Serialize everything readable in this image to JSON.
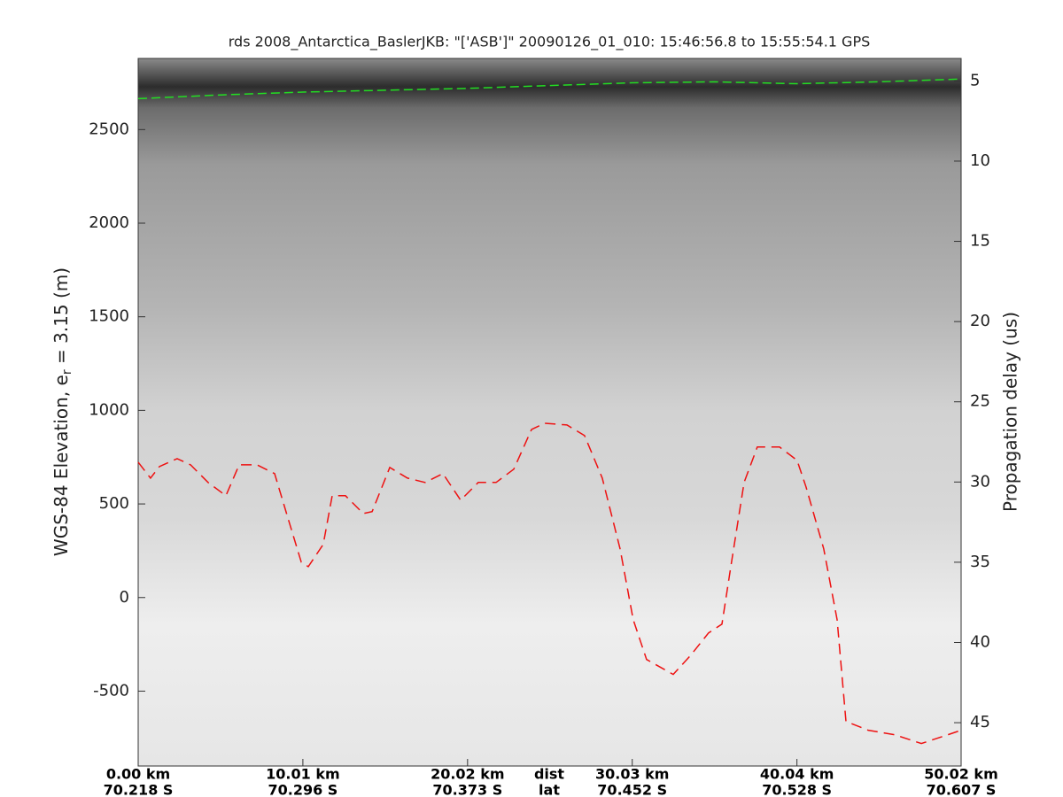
{
  "chart_data": {
    "type": "radargram",
    "title": "rds 2008_Antarctica_BaslerJKB: \"['ASB']\"  20090126_01_010: 15:46:56.8 to 15:55:54.1 GPS",
    "ylabel": [
      "WGS-84 Elevation, e",
      "r",
      " = 3.15 (m)"
    ],
    "y2label": "Propagation delay (us)",
    "xlim": [
      0,
      50.02
    ],
    "ylim": [
      -900,
      2880
    ],
    "y2lim": [
      47.7,
      3.6
    ],
    "yticks": [
      -500,
      0,
      500,
      1000,
      1500,
      2000,
      2500
    ],
    "y2ticks": [
      5,
      10,
      15,
      20,
      25,
      30,
      35,
      40,
      45
    ],
    "xticks": [
      {
        "value": 0,
        "label": "0.00 km"
      },
      {
        "value": 10.01,
        "label": "10.01 km"
      },
      {
        "value": 20.02,
        "label": "20.02 km"
      },
      {
        "value": 30.03,
        "label": "30.03 km"
      },
      {
        "value": 40.04,
        "label": "40.04 km"
      },
      {
        "value": 50.02,
        "label": "50.02 km"
      }
    ],
    "xtick_lat_labels": [
      "70.218 S",
      "70.296 S",
      "70.373 S",
      "70.452 S",
      "70.528 S",
      "70.607 S"
    ],
    "xtick_row_labels": [
      "dist",
      "lat"
    ],
    "series": [
      {
        "color": "#22dd22",
        "x": [
          0,
          5,
          10,
          15,
          20,
          25,
          30,
          35,
          40,
          45,
          50
        ],
        "values": [
          2665,
          2685,
          2700,
          2710,
          2720,
          2735,
          2750,
          2755,
          2745,
          2755,
          2770
        ]
      },
      {
        "color": "#ee1111",
        "x": [
          0,
          0.75,
          1.29,
          2.37,
          3.18,
          4.25,
          5.33,
          6.14,
          7.22,
          8.29,
          9.1,
          9.91,
          10.34,
          11.25,
          11.79,
          12.6,
          13.68,
          14.22,
          15.29,
          16.37,
          17.44,
          18.52,
          19.6,
          20.67,
          21.75,
          22.83,
          23.91,
          24.71,
          26.06,
          27.13,
          28.21,
          29.29,
          30.09,
          30.9,
          32.52,
          33.59,
          34.67,
          35.48,
          36.02,
          36.83,
          37.63,
          38.98,
          40.05,
          40.59,
          41.67,
          42.48,
          43.02,
          44.37,
          45.98,
          47.6,
          49.21,
          50.02
        ],
        "values": [
          723,
          638,
          700,
          742,
          709,
          615,
          544,
          709,
          709,
          662,
          425,
          189,
          165,
          284,
          544,
          544,
          449,
          459,
          695,
          638,
          615,
          662,
          520,
          615,
          615,
          686,
          898,
          931,
          922,
          865,
          638,
          260,
          -118,
          -331,
          -411,
          -307,
          -189,
          -142,
          165,
          615,
          804,
          804,
          733,
          591,
          260,
          -118,
          -662,
          -709,
          -733,
          -780,
          -733,
          -709
        ]
      }
    ]
  }
}
